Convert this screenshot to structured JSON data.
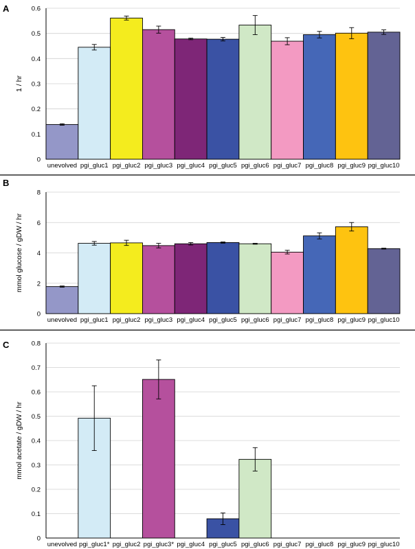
{
  "chart_data": [
    {
      "panel": "A",
      "type": "bar",
      "ylabel": "1 / hr",
      "xlabel": "",
      "ylim": [
        0,
        0.6
      ],
      "yticks": [
        0,
        0.1,
        0.2,
        0.3,
        0.4,
        0.5,
        0.6
      ],
      "grid": true,
      "categories": [
        "unevolved",
        "pgi_gluc1",
        "pgi_gluc2",
        "pgi_gluc3",
        "pgi_gluc4",
        "pgi_gluc5",
        "pgi_gluc6",
        "pgi_gluc7",
        "pgi_gluc8",
        "pgi_gluc9",
        "pgi_gluc10"
      ],
      "values": [
        0.138,
        0.445,
        0.561,
        0.515,
        0.478,
        0.477,
        0.533,
        0.469,
        0.495,
        0.501,
        0.505
      ],
      "errors": [
        0.003,
        0.011,
        0.008,
        0.014,
        0.003,
        0.007,
        0.038,
        0.014,
        0.013,
        0.022,
        0.009
      ]
    },
    {
      "panel": "B",
      "type": "bar",
      "ylabel": "mmol glucose / gDW / hr",
      "xlabel": "",
      "ylim": [
        0,
        8
      ],
      "yticks": [
        0,
        2,
        4,
        6,
        8
      ],
      "grid": true,
      "categories": [
        "unevolved",
        "pgi_gluc1",
        "pgi_gluc2",
        "pgi_gluc3",
        "pgi_gluc4",
        "pgi_gluc5",
        "pgi_gluc6",
        "pgi_gluc7",
        "pgi_gluc8",
        "pgi_gluc9",
        "pgi_gluc10"
      ],
      "values": [
        1.78,
        4.63,
        4.66,
        4.48,
        4.6,
        4.68,
        4.6,
        4.05,
        5.12,
        5.72,
        4.28
      ],
      "errors": [
        0.04,
        0.12,
        0.17,
        0.15,
        0.08,
        0.04,
        0.03,
        0.12,
        0.2,
        0.28,
        0.03
      ]
    },
    {
      "panel": "C",
      "type": "bar",
      "ylabel": "mmol acetate / gDW / hr",
      "xlabel": "",
      "ylim": [
        0,
        0.8
      ],
      "yticks": [
        0,
        0.1,
        0.2,
        0.3,
        0.4,
        0.5,
        0.6,
        0.7,
        0.8
      ],
      "grid": true,
      "categories": [
        "unevolved",
        "pgi_gluc1*",
        "pgi_gluc2",
        "pgi_gluc3*",
        "pgi_gluc4",
        "pgi_gluc5",
        "pgi_gluc6",
        "pgi_gluc7",
        "pgi_gluc8",
        "pgi_gluc9",
        "pgi_gluc10"
      ],
      "values": [
        0,
        0.492,
        0,
        0.651,
        0,
        0.079,
        0.323,
        0,
        0,
        0,
        0
      ],
      "errors": [
        0,
        0.133,
        0,
        0.08,
        0,
        0.024,
        0.048,
        0,
        0,
        0,
        0
      ]
    }
  ],
  "colors": [
    "#9497c8",
    "#d3ebf6",
    "#f4ec1e",
    "#b5509d",
    "#7e2677",
    "#3a52a4",
    "#d0e8c6",
    "#f39ac2",
    "#4567b7",
    "#fec310",
    "#636394"
  ],
  "style": {
    "grid_color": "#d0d0d0",
    "axis_color": "#000000",
    "bar_border": "#000000"
  }
}
